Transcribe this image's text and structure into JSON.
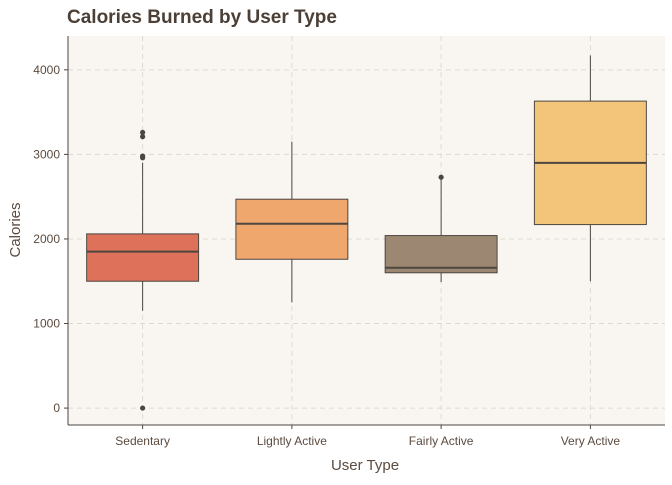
{
  "chart_data": {
    "type": "box",
    "title": "Calories Burned by User Type",
    "xlabel": "User Type",
    "ylabel": "Calories",
    "ylim": [
      -200,
      4400
    ],
    "yticks": [
      0,
      1000,
      2000,
      3000,
      4000
    ],
    "grid": true,
    "categories": [
      "Sedentary",
      "Lightly Active",
      "Fairly Active",
      "Very Active"
    ],
    "boxes": [
      {
        "q1": 1500,
        "median": 1850,
        "q3": 2060,
        "whisker_low": 1150,
        "whisker_high": 2900,
        "outliers": [
          0,
          2960,
          2980,
          3210,
          3260
        ]
      },
      {
        "q1": 1760,
        "median": 2180,
        "q3": 2470,
        "whisker_low": 1250,
        "whisker_high": 3150,
        "outliers": []
      },
      {
        "q1": 1600,
        "median": 1660,
        "q3": 2040,
        "whisker_low": 1490,
        "whisker_high": 2730,
        "outliers": [
          2730
        ]
      },
      {
        "q1": 2170,
        "median": 2900,
        "q3": 3630,
        "whisker_low": 1500,
        "whisker_high": 4170,
        "outliers": []
      }
    ],
    "colors": {
      "fills": [
        "#DE715A",
        "#F0A76E",
        "#9C8872",
        "#F3C57A"
      ],
      "panel": "#F9F6F2",
      "grid": "#E0D9D2",
      "line": "#4D4640",
      "text": "#5B4B40",
      "title": "#4B3F36"
    }
  }
}
